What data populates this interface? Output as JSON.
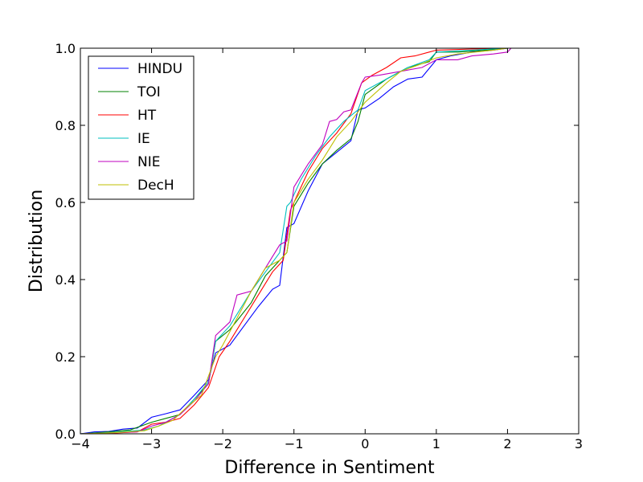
{
  "chart_data": {
    "type": "line",
    "title": "",
    "xlabel": "Difference in Sentiment",
    "ylabel": "Distribution",
    "xlim": [
      -4,
      3
    ],
    "ylim": [
      0,
      1
    ],
    "xticks": [
      -4,
      -3,
      -2,
      -1,
      0,
      1,
      2,
      3
    ],
    "xtick_labels": [
      "−4",
      "−3",
      "−2",
      "−1",
      "0",
      "1",
      "2",
      "3"
    ],
    "yticks": [
      0,
      0.2,
      0.4,
      0.6,
      0.8,
      1.0
    ],
    "ytick_labels": [
      "0.0",
      "0.2",
      "0.4",
      "0.6",
      "0.8",
      "1.0"
    ],
    "grid": false,
    "legend_position": "top-left",
    "series": [
      {
        "name": "HINDU",
        "color": "#0000ff",
        "x": [
          -4.0,
          -3.8,
          -3.6,
          -3.4,
          -3.2,
          -3.0,
          -2.8,
          -2.6,
          -2.4,
          -2.2,
          -2.1,
          -1.9,
          -1.7,
          -1.5,
          -1.3,
          -1.2,
          -1.1,
          -1.0,
          -0.8,
          -0.6,
          -0.4,
          -0.2,
          -0.1,
          0.0,
          0.2,
          0.4,
          0.6,
          0.8,
          1.0,
          1.2,
          1.5,
          1.8,
          2.0,
          2.7
        ],
        "y": [
          0.0,
          0.005,
          0.006,
          0.012,
          0.015,
          0.043,
          0.052,
          0.062,
          0.1,
          0.14,
          0.21,
          0.23,
          0.28,
          0.33,
          0.375,
          0.385,
          0.535,
          0.545,
          0.63,
          0.7,
          0.73,
          0.76,
          0.84,
          0.845,
          0.87,
          0.9,
          0.92,
          0.925,
          0.97,
          0.98,
          0.99,
          0.995,
          1.0,
          1.0
        ]
      },
      {
        "name": "TOI",
        "color": "#008000",
        "x": [
          -4.0,
          -3.6,
          -3.3,
          -3.0,
          -2.8,
          -2.6,
          -2.4,
          -2.2,
          -2.1,
          -1.9,
          -1.6,
          -1.4,
          -1.2,
          -1.1,
          -1.0,
          -0.8,
          -0.6,
          -0.4,
          -0.2,
          -0.1,
          0.0,
          0.3,
          0.6,
          0.9,
          1.0,
          1.3,
          1.7,
          2.0
        ],
        "y": [
          0.0,
          0.005,
          0.01,
          0.03,
          0.04,
          0.05,
          0.09,
          0.13,
          0.24,
          0.27,
          0.34,
          0.41,
          0.45,
          0.47,
          0.59,
          0.65,
          0.7,
          0.735,
          0.765,
          0.81,
          0.88,
          0.92,
          0.95,
          0.965,
          0.99,
          0.99,
          0.995,
          1.0
        ]
      },
      {
        "name": "HT",
        "color": "#ff0000",
        "x": [
          -4.0,
          -3.5,
          -3.2,
          -3.0,
          -2.8,
          -2.6,
          -2.4,
          -2.2,
          -2.05,
          -1.9,
          -1.7,
          -1.5,
          -1.3,
          -1.15,
          -1.05,
          -0.95,
          -0.8,
          -0.6,
          -0.4,
          -0.2,
          -0.05,
          0.1,
          0.3,
          0.5,
          0.7,
          0.9,
          1.0,
          1.5,
          2.0
        ],
        "y": [
          0.0,
          0.002,
          0.005,
          0.025,
          0.03,
          0.04,
          0.075,
          0.12,
          0.2,
          0.24,
          0.3,
          0.36,
          0.42,
          0.45,
          0.58,
          0.62,
          0.68,
          0.74,
          0.78,
          0.83,
          0.91,
          0.93,
          0.95,
          0.975,
          0.98,
          0.99,
          0.995,
          0.998,
          1.0
        ]
      },
      {
        "name": "IE",
        "color": "#00bfbf",
        "x": [
          -4.0,
          -3.5,
          -3.1,
          -2.9,
          -2.6,
          -2.4,
          -2.2,
          -2.1,
          -1.9,
          -1.6,
          -1.4,
          -1.2,
          -1.1,
          -1.05,
          -0.9,
          -0.7,
          -0.5,
          -0.3,
          -0.1,
          0.0,
          0.3,
          0.6,
          0.9,
          1.0,
          1.5,
          2.0
        ],
        "y": [
          0.0,
          0.004,
          0.01,
          0.02,
          0.05,
          0.09,
          0.135,
          0.24,
          0.28,
          0.37,
          0.42,
          0.47,
          0.59,
          0.6,
          0.66,
          0.72,
          0.77,
          0.81,
          0.84,
          0.89,
          0.92,
          0.95,
          0.97,
          0.99,
          0.995,
          1.0
        ]
      },
      {
        "name": "NIE",
        "color": "#bf00bf",
        "x": [
          -4.0,
          -3.5,
          -3.2,
          -3.0,
          -2.8,
          -2.6,
          -2.4,
          -2.2,
          -2.1,
          -1.9,
          -1.8,
          -1.6,
          -1.4,
          -1.2,
          -1.1,
          -1.0,
          -0.8,
          -0.6,
          -0.5,
          -0.4,
          -0.3,
          -0.2,
          -0.05,
          0.0,
          0.2,
          0.5,
          0.8,
          1.0,
          1.3,
          1.5,
          1.8,
          2.0,
          2.05
        ],
        "y": [
          0.0,
          0.003,
          0.005,
          0.02,
          0.03,
          0.05,
          0.085,
          0.13,
          0.255,
          0.29,
          0.36,
          0.37,
          0.43,
          0.49,
          0.5,
          0.64,
          0.7,
          0.75,
          0.81,
          0.815,
          0.835,
          0.84,
          0.91,
          0.925,
          0.93,
          0.94,
          0.95,
          0.97,
          0.97,
          0.98,
          0.985,
          0.99,
          1.0
        ]
      },
      {
        "name": "DecH",
        "color": "#bfbf00",
        "x": [
          -4.0,
          -3.5,
          -3.1,
          -2.9,
          -2.7,
          -2.5,
          -2.3,
          -2.1,
          -2.0,
          -1.8,
          -1.6,
          -1.4,
          -1.2,
          -1.1,
          -1.0,
          -0.8,
          -0.6,
          -0.4,
          -0.2,
          0.0,
          0.3,
          0.5,
          0.8,
          1.0,
          1.3,
          1.8,
          2.0
        ],
        "y": [
          0.0,
          0.003,
          0.008,
          0.02,
          0.035,
          0.07,
          0.1,
          0.2,
          0.23,
          0.3,
          0.37,
          0.43,
          0.45,
          0.47,
          0.6,
          0.66,
          0.71,
          0.77,
          0.81,
          0.86,
          0.91,
          0.94,
          0.96,
          0.975,
          0.985,
          0.995,
          1.0
        ]
      }
    ]
  }
}
